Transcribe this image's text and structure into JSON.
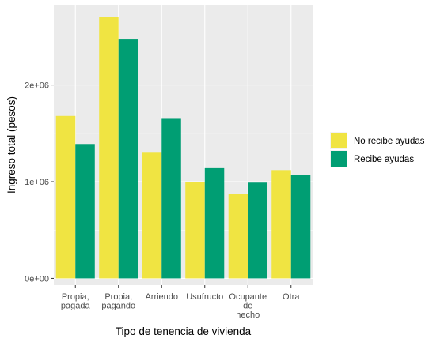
{
  "chart_data": {
    "type": "bar",
    "title": "",
    "xlabel": "Tipo de tenencia de vivienda",
    "ylabel": "Ingreso total (pesos)",
    "categories": [
      [
        "Propia,",
        "pagada"
      ],
      [
        "Propia,",
        "pagando"
      ],
      [
        "Arriendo"
      ],
      [
        "Usufructo"
      ],
      [
        "Ocupante",
        "de",
        "hecho"
      ],
      [
        "Otra"
      ]
    ],
    "series": [
      {
        "name": "No recibe ayudas",
        "color": "#F0E442",
        "values": [
          1680000,
          2700000,
          1300000,
          1000000,
          870000,
          1120000
        ]
      },
      {
        "name": "Recibe ayudas",
        "color": "#009E73",
        "values": [
          1390000,
          2470000,
          1650000,
          1140000,
          990000,
          1070000
        ]
      }
    ],
    "ylim": [
      -70000,
      2830000
    ],
    "yticks": [
      0,
      1000000,
      2000000
    ],
    "ytick_labels": [
      "0e+00",
      "1e+06",
      "2e+06"
    ],
    "grid": true,
    "legend_position": "right",
    "panel_background": "#EBEBEB",
    "grid_color": "#FFFFFF"
  }
}
